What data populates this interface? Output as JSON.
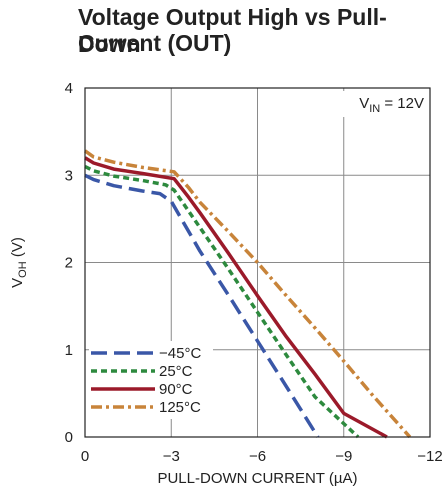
{
  "chart_data": {
    "type": "line",
    "title": [
      "Voltage Output High vs Pull-Down",
      "Current (OUT)"
    ],
    "xlabel": "PULL-DOWN CURRENT (µA)",
    "ylabel": {
      "main": "V",
      "sub": "OH",
      "rest": " (V)"
    },
    "xlim": [
      0,
      -12
    ],
    "ylim": [
      0,
      4
    ],
    "x_ticks": [
      0,
      -3,
      -6,
      -9,
      -12
    ],
    "x_tick_labels": [
      "0",
      "−3",
      "−6",
      "−9",
      "−12"
    ],
    "y_ticks": [
      0,
      1,
      2,
      3,
      4
    ],
    "y_tick_labels": [
      "0",
      "1",
      "2",
      "3",
      "4"
    ],
    "grid": true,
    "annotation": {
      "main": "V",
      "sub": "IN",
      "rest": " = 12V",
      "position": "top-right"
    },
    "legend_position": "bottom-left",
    "series": [
      {
        "name": "−45°C",
        "color": "#3a57a7",
        "dash": "long-dash",
        "x": [
          0,
          -0.3,
          -1,
          -2,
          -2.6,
          -3,
          -4,
          -5,
          -6,
          -7,
          -8.1
        ],
        "y": [
          3.0,
          2.95,
          2.88,
          2.82,
          2.79,
          2.7,
          2.13,
          1.62,
          1.1,
          0.58,
          0.0
        ]
      },
      {
        "name": "25°C",
        "color": "#2d8a3e",
        "dash": "short-dash",
        "x": [
          0,
          -0.3,
          -1,
          -2,
          -2.8,
          -3.1,
          -4,
          -5,
          -6,
          -7,
          -8,
          -9.5
        ],
        "y": [
          3.1,
          3.05,
          2.99,
          2.94,
          2.89,
          2.83,
          2.4,
          1.92,
          1.43,
          0.94,
          0.46,
          0.0
        ]
      },
      {
        "name": "90°C",
        "color": "#9b1a2a",
        "dash": "solid",
        "x": [
          0,
          -0.3,
          -1,
          -2,
          -3.1,
          -3.6,
          -4,
          -5,
          -6,
          -7,
          -8,
          -9,
          -10.5
        ],
        "y": [
          3.2,
          3.14,
          3.07,
          3.02,
          2.96,
          2.75,
          2.57,
          2.1,
          1.62,
          1.15,
          0.72,
          0.27,
          0.0
        ]
      },
      {
        "name": "125°C",
        "color": "#c8843a",
        "dash": "dash-dot",
        "x": [
          0,
          -0.3,
          -1,
          -2,
          -3.1,
          -3.6,
          -4,
          -5,
          -6,
          -7,
          -8,
          -9,
          -10,
          -11.3
        ],
        "y": [
          3.28,
          3.21,
          3.15,
          3.09,
          3.04,
          2.86,
          2.69,
          2.35,
          2.0,
          1.62,
          1.25,
          0.87,
          0.48,
          0.0
        ]
      }
    ]
  }
}
